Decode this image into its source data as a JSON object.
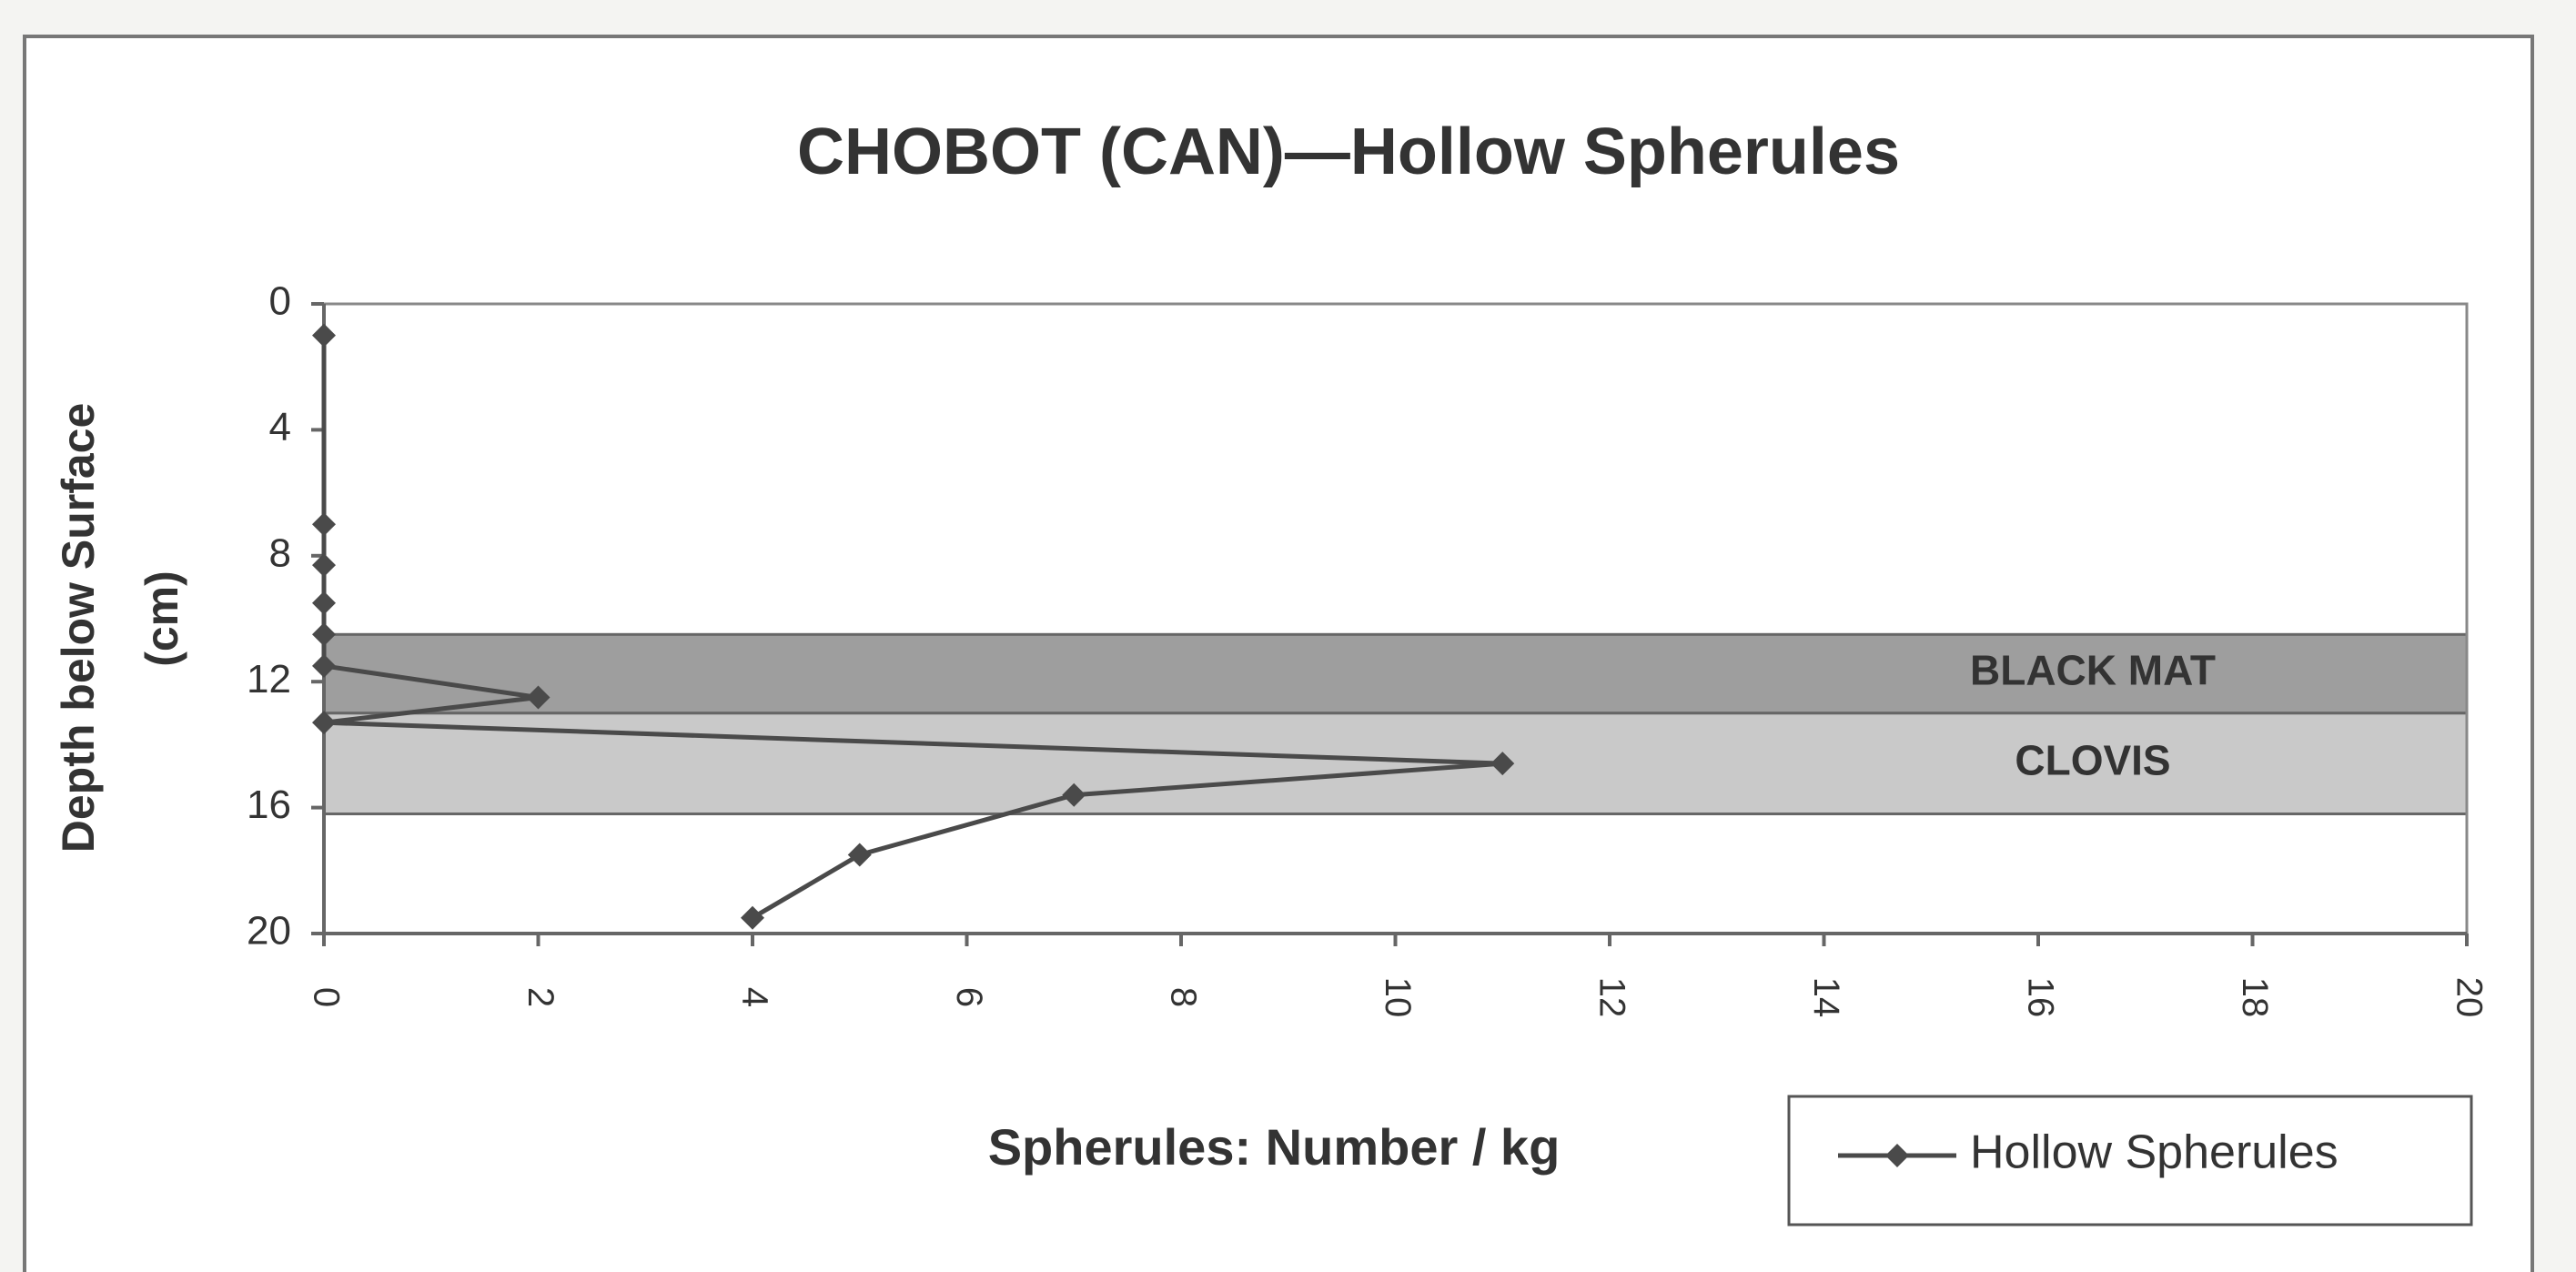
{
  "chart_data": {
    "type": "line",
    "title": "CHOBOT (CAN)—Hollow Spherules",
    "y_label": "Depth below Surface",
    "y_label_unit": "(cm)",
    "x_label": "Spherules: Number / kg",
    "xlim": [
      0,
      20
    ],
    "xticks": [
      0,
      2,
      4,
      6,
      8,
      10,
      12,
      14,
      16,
      18,
      20
    ],
    "ylim": [
      20,
      0
    ],
    "yticks": [
      0,
      4,
      8,
      12,
      16,
      20
    ],
    "bands": [
      {
        "label": "BLACK MAT",
        "from": 10.5,
        "to": 13,
        "color": "#9e9e9e"
      },
      {
        "label": "CLOVIS",
        "from": 13,
        "to": 16.2,
        "color": "#c9c9c9"
      }
    ],
    "series": [
      {
        "name": "Hollow Spherules",
        "color": "#4a4a4a",
        "x": [
          0,
          0,
          0,
          0,
          0,
          0,
          2,
          0,
          11,
          7,
          5,
          4
        ],
        "values": [
          1,
          7,
          8.3,
          9.5,
          10.5,
          11.5,
          12.5,
          13.3,
          14.6,
          15.6,
          17.5,
          19.5
        ]
      }
    ],
    "legend": "bottom-right"
  }
}
